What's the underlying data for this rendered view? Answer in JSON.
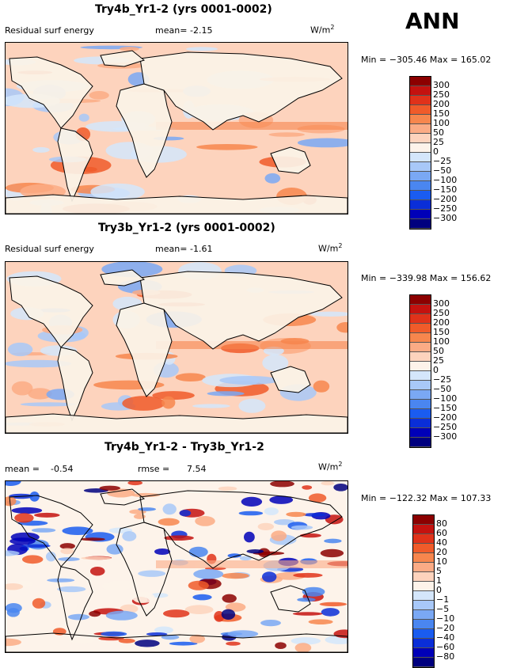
{
  "season": "ANN",
  "colors": {
    "abs_scale": [
      "#00007f",
      "#0000b8",
      "#0a2ed8",
      "#1a5cf0",
      "#4a86f0",
      "#7aa8f4",
      "#a8c8f8",
      "#d4e6fb",
      "#fdf3ea",
      "#fdd3bd",
      "#fbab85",
      "#f7864d",
      "#f05b2a",
      "#e0321a",
      "#c4120f",
      "#8c0000"
    ],
    "diff_scale": [
      "#00007f",
      "#0000b8",
      "#0a2ed8",
      "#1a5cf0",
      "#4a86f0",
      "#7aa8f4",
      "#a8c8f8",
      "#d4e6fb",
      "#fdf3ea",
      "#fdd3bd",
      "#fbab85",
      "#f7864d",
      "#f05b2a",
      "#e0321a",
      "#c4120f",
      "#8c0000"
    ],
    "land": "#fbf3e7"
  },
  "units": {
    "base": "W/m",
    "sup": "2"
  },
  "chart_data": [
    {
      "type": "heatmap",
      "title": "Try4b_Yr1-2 (yrs 0001-0002)",
      "variable": "Residual surf energy",
      "stat1_label": "mean=",
      "stat1_value": "-2.15",
      "minmax": "Min = −305.46  Max = 165.02",
      "levels": [
        "300",
        "250",
        "200",
        "150",
        "100",
        "50",
        "25",
        "0",
        "−25",
        "−50",
        "−100",
        "−150",
        "−200",
        "−250",
        "−300"
      ]
    },
    {
      "type": "heatmap",
      "title": "Try3b_Yr1-2 (yrs 0001-0002)",
      "variable": "Residual surf energy",
      "stat1_label": "mean=",
      "stat1_value": "-1.61",
      "minmax": "Min = −339.98  Max = 156.62",
      "levels": [
        "300",
        "250",
        "200",
        "150",
        "100",
        "50",
        "25",
        "0",
        "−25",
        "−50",
        "−100",
        "−150",
        "−200",
        "−250",
        "−300"
      ]
    },
    {
      "type": "heatmap",
      "title": "Try4b_Yr1-2 - Try3b_Yr1-2",
      "stat1_label": "mean =",
      "stat1_value": "-0.54",
      "stat2_label": "rmse =",
      "stat2_value": "7.54",
      "minmax": "Min = −122.32  Max = 107.33",
      "levels": [
        "80",
        "60",
        "40",
        "20",
        "10",
        "5",
        "1",
        "0",
        "−1",
        "−5",
        "−10",
        "−20",
        "−40",
        "−60",
        "−80"
      ]
    }
  ]
}
